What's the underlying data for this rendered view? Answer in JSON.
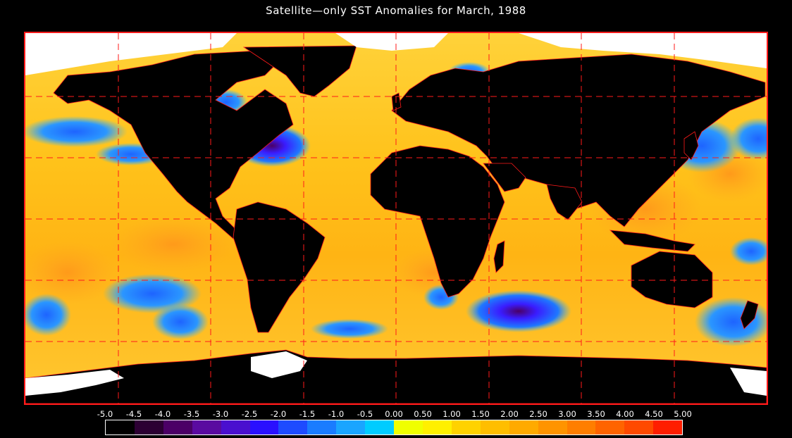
{
  "title": "Satellite—only SST Anomalies for March, 1988",
  "colors": {
    "frame": "#ff1a1a",
    "land": "#000000",
    "ice": "#ffffff",
    "background": "#000000"
  },
  "colorbar": {
    "ticks": [
      "-5.0",
      "-4.5",
      "-4.0",
      "-3.5",
      "-3.0",
      "-2.5",
      "-2.0",
      "-1.5",
      "-1.0",
      "-0.5",
      "0.00",
      "0.50",
      "1.00",
      "1.50",
      "2.00",
      "2.50",
      "3.00",
      "3.50",
      "4.00",
      "4.50",
      "5.00"
    ],
    "bins": [
      "#000000",
      "#2c0033",
      "#4b0066",
      "#5a0aa0",
      "#4a0fcf",
      "#2a10ff",
      "#1e4bff",
      "#1a7cff",
      "#1aa5ff",
      "#00ccff",
      "#f0ff00",
      "#fff000",
      "#ffd200",
      "#ffbe00",
      "#ffaa00",
      "#ff9400",
      "#ff7e00",
      "#ff6400",
      "#ff4a00",
      "#ff1e00"
    ]
  }
}
